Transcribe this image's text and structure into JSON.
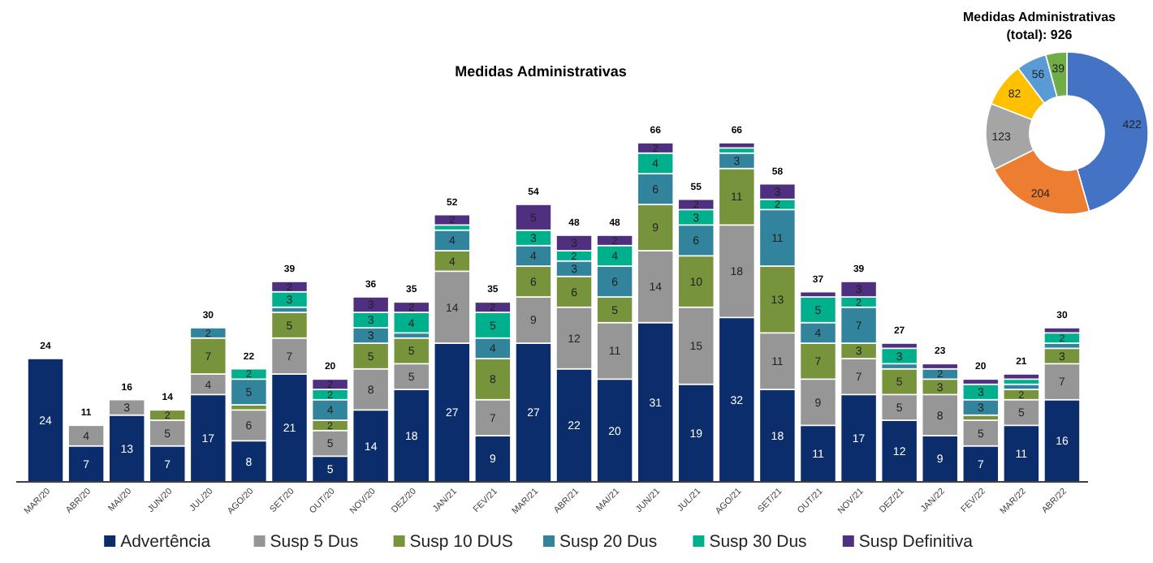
{
  "chart_data": [
    {
      "type": "bar",
      "title": "Medidas Administrativas",
      "stacked": true,
      "legend": "bottom",
      "categories": [
        "MAR/20",
        "ABR/20",
        "MAI/20",
        "JUN/20",
        "JUL/20",
        "AGO/20",
        "SET/20",
        "OUT/20",
        "NOV/20",
        "DEZ/20",
        "JAN/21",
        "FEV/21",
        "MAR/21",
        "ABR/21",
        "MAI/21",
        "JUN/21",
        "JUL/21",
        "AGO/21",
        "SET/21",
        "OUT/21",
        "NOV/21",
        "DEZ/21",
        "JAN/22",
        "FEV/22",
        "MAR/22",
        "ABR/22"
      ],
      "series": [
        {
          "name": "Advertência",
          "color": "#0c2d6b",
          "values": [
            24,
            7,
            13,
            7,
            17,
            8,
            21,
            5,
            14,
            18,
            27,
            9,
            27,
            22,
            20,
            31,
            19,
            32,
            18,
            11,
            17,
            12,
            9,
            7,
            11,
            16
          ],
          "value_labels": [
            "24",
            "7",
            "13",
            "7",
            "17",
            "8",
            "21",
            "5",
            "14",
            "18",
            "27",
            "9",
            "27",
            "22",
            "20",
            "31",
            "19",
            "32",
            "18",
            "11",
            "17",
            "12",
            "9",
            "7",
            "11",
            "16"
          ]
        },
        {
          "name": "Susp 5 Dus",
          "color": "#969696",
          "values": [
            0,
            4,
            3,
            5,
            4,
            6,
            7,
            5,
            8,
            5,
            14,
            7,
            9,
            12,
            11,
            14,
            15,
            18,
            11,
            9,
            7,
            5,
            8,
            5,
            5,
            7
          ],
          "value_labels": [
            null,
            "4",
            "3",
            "5",
            "4",
            "6",
            "7",
            "5",
            "8",
            "5",
            "14",
            "7",
            "9",
            "12",
            "11",
            "14",
            "15",
            "18",
            "11",
            "9",
            "7",
            "5",
            "8",
            "5",
            "5",
            "7"
          ]
        },
        {
          "name": "Susp 10 DUS",
          "color": "#77933c",
          "values": [
            0,
            0,
            0,
            2,
            7,
            1,
            5,
            2,
            5,
            5,
            4,
            8,
            6,
            6,
            5,
            9,
            10,
            11,
            13,
            7,
            3,
            5,
            3,
            1,
            2,
            3
          ],
          "value_labels": [
            null,
            null,
            null,
            "2",
            "7",
            null,
            "5",
            "2",
            "5",
            "5",
            "4",
            "8",
            "6",
            "6",
            "5",
            "9",
            "10",
            "11",
            "13",
            "7",
            "3",
            "5",
            "3",
            null,
            "2",
            "3"
          ]
        },
        {
          "name": "Susp 20 Dus",
          "color": "#31849b",
          "values": [
            0,
            0,
            0,
            0,
            2,
            5,
            1,
            4,
            3,
            1,
            4,
            4,
            4,
            3,
            6,
            6,
            6,
            3,
            11,
            4,
            7,
            1,
            2,
            3,
            1,
            1
          ],
          "value_labels": [
            null,
            null,
            null,
            null,
            "2",
            "5",
            null,
            "4",
            "3",
            null,
            "4",
            "4",
            "4",
            "3",
            "6",
            "6",
            "6",
            "3",
            "11",
            "4",
            "7",
            null,
            "2",
            "3",
            null,
            null
          ]
        },
        {
          "name": "Susp 30 Dus",
          "color": "#00b08c",
          "values": [
            0,
            0,
            0,
            0,
            0,
            2,
            3,
            2,
            3,
            4,
            1,
            5,
            3,
            2,
            4,
            4,
            3,
            1,
            2,
            5,
            2,
            3,
            0,
            3,
            1,
            2
          ],
          "value_labels": [
            null,
            null,
            null,
            null,
            null,
            "2",
            "3",
            "2",
            "3",
            "4",
            null,
            "5",
            "3",
            "2",
            "4",
            "4",
            "3",
            null,
            "2",
            "5",
            "2",
            "3",
            null,
            "3",
            null,
            "2"
          ]
        },
        {
          "name": "Susp Definitiva",
          "color": "#4f2f7f",
          "values": [
            0,
            0,
            0,
            0,
            0,
            0,
            2,
            2,
            3,
            2,
            2,
            2,
            5,
            3,
            2,
            2,
            2,
            1,
            3,
            1,
            3,
            1,
            1,
            1,
            1,
            1
          ],
          "value_labels": [
            null,
            null,
            null,
            null,
            null,
            null,
            "2",
            "2",
            "3",
            "2",
            "2",
            "2",
            "5",
            "3",
            "2",
            "2",
            "2",
            null,
            "3",
            null,
            "3",
            null,
            null,
            null,
            null,
            null
          ]
        }
      ],
      "totals": [
        "24",
        "11",
        "16",
        "14",
        "30",
        "22",
        "39",
        "20",
        "36",
        "35",
        "52",
        "35",
        "54",
        "48",
        "48",
        "66",
        "55",
        "66",
        "58",
        "37",
        "39",
        "27",
        "23",
        "20",
        "21",
        "30"
      ]
    },
    {
      "type": "donut",
      "title": "Medidas Administrativas (total): 926",
      "data_labels": true,
      "categories": [
        null,
        null,
        null,
        null,
        null,
        null
      ],
      "values": [
        422,
        204,
        123,
        82,
        56,
        39
      ],
      "colors": [
        "#4472c4",
        "#ed7d31",
        "#a5a5a5",
        "#ffc000",
        "#5b9bd5",
        "#70ad47"
      ]
    }
  ]
}
